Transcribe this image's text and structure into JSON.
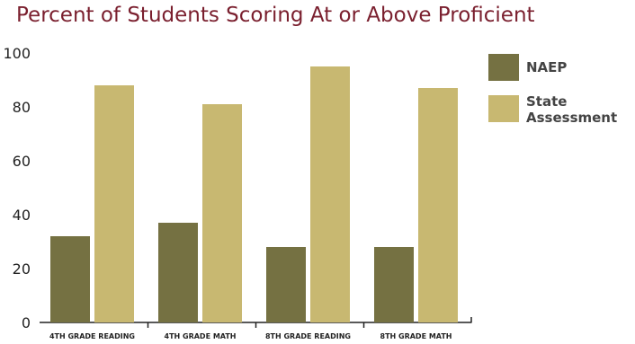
{
  "chart_data": {
    "type": "bar",
    "title": "Percent of Students Scoring At or Above Proficient",
    "categories": [
      "4TH GRADE READING",
      "4TH GRADE MATH",
      "8TH GRADE READING",
      "8TH GRADE MATH"
    ],
    "series": [
      {
        "name": "NAEP",
        "values": [
          32,
          37,
          28,
          28
        ],
        "color": "#757142"
      },
      {
        "name": "State Assessment",
        "values": [
          88,
          81,
          95,
          87
        ],
        "color": "#c8b871"
      }
    ],
    "yticks": [
      "100",
      "80",
      "60",
      "40",
      "20",
      "0"
    ],
    "ylim": [
      0,
      100
    ],
    "grid": false,
    "legend_position": "right"
  }
}
